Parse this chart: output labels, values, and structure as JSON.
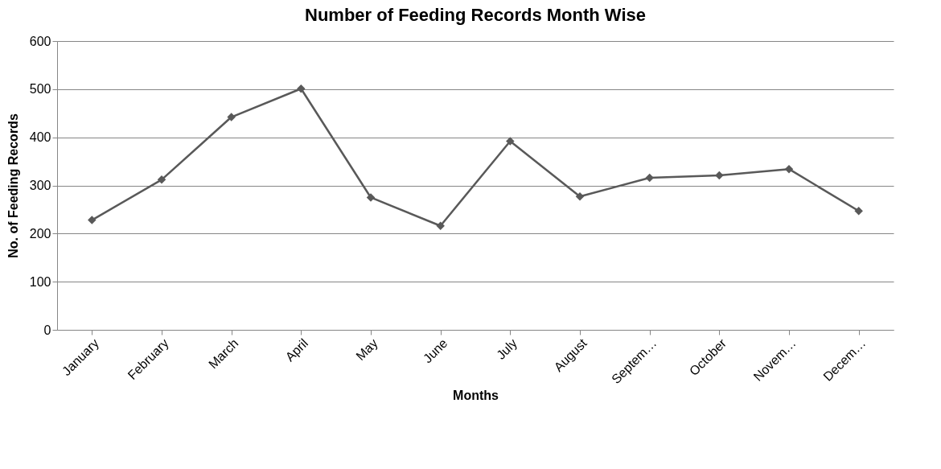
{
  "chart_data": {
    "type": "line",
    "title": "Number of Feeding Records Month Wise",
    "xlabel": "Months",
    "ylabel": "No. of Feeding Records",
    "categories": [
      "January",
      "February",
      "March",
      "April",
      "May",
      "June",
      "July",
      "August",
      "Septem…",
      "October",
      "Novem…",
      "Decem…"
    ],
    "series": [
      {
        "color": "#595959",
        "values": [
          228,
          312,
          442,
          501,
          275,
          216,
          392,
          277,
          316,
          321,
          334,
          247
        ]
      }
    ],
    "ylim": [
      0,
      600
    ],
    "yticks": [
      0,
      100,
      200,
      300,
      400,
      500,
      600
    ],
    "grid": "y",
    "marker": "diamond",
    "line_style": "solid"
  }
}
